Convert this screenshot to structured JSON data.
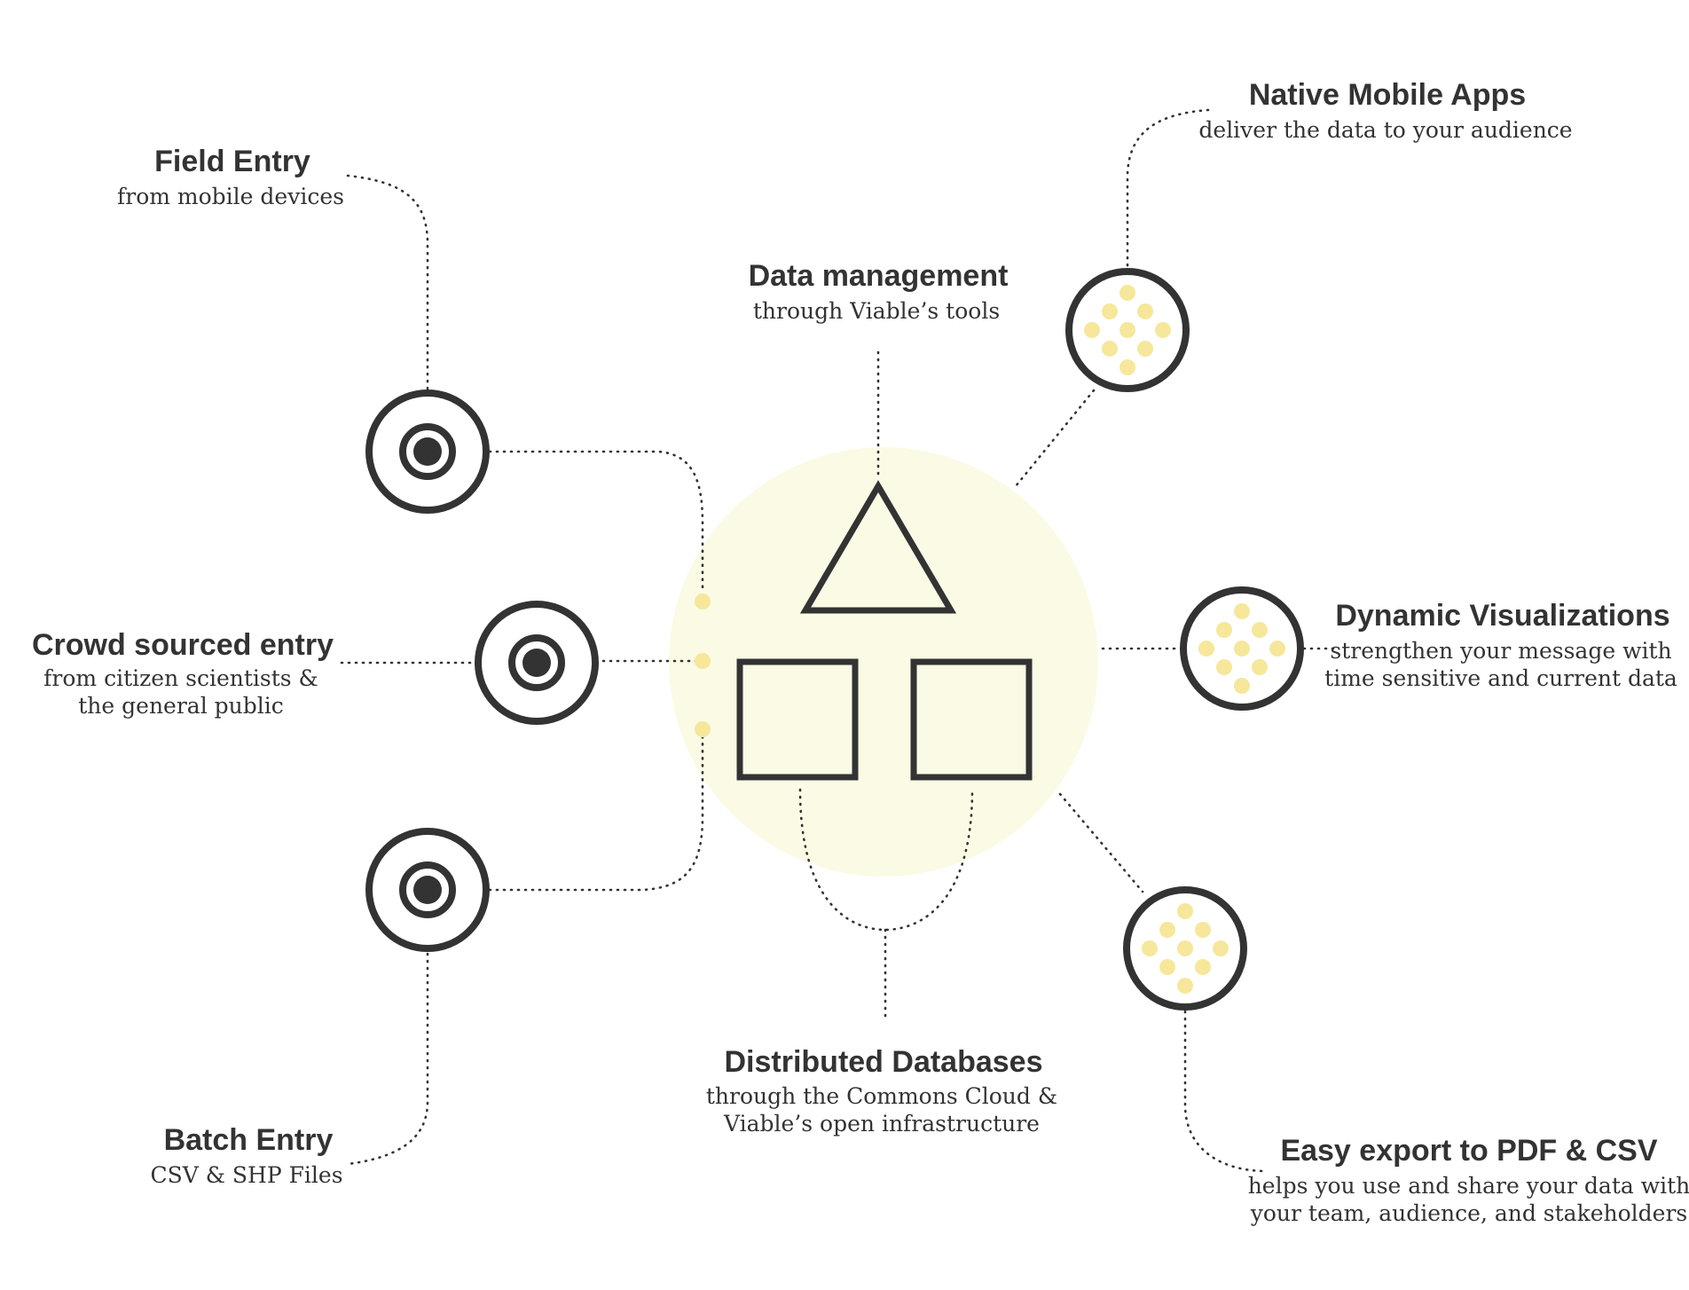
{
  "nodes": {
    "field_entry": {
      "title": "Field Entry",
      "subtitle": [
        "from mobile devices"
      ]
    },
    "crowd_sourced": {
      "title": "Crowd sourced entry",
      "subtitle": [
        "from citizen scientists &",
        "the general public"
      ]
    },
    "batch_entry": {
      "title": "Batch Entry",
      "subtitle": [
        "CSV & SHP Files"
      ]
    },
    "data_management": {
      "title": "Data management",
      "subtitle": [
        "through Viable’s tools"
      ]
    },
    "distributed_db": {
      "title": "Distributed Databases",
      "subtitle": [
        "through the Commons Cloud &",
        "Viable’s open infrastructure"
      ]
    },
    "native_apps": {
      "title": "Native Mobile Apps",
      "subtitle": [
        "deliver the data to your audience"
      ]
    },
    "dynamic_viz": {
      "title": "Dynamic Visualizations",
      "subtitle": [
        "strengthen your message with",
        "time sensitive and current data"
      ]
    },
    "easy_export": {
      "title": "Easy export to PDF & CSV",
      "subtitle": [
        "helps you use and share your data with",
        "your team, audience, and stakeholders"
      ]
    }
  },
  "colors": {
    "ink": "#333333",
    "accent": "#f6e79b",
    "hub": "#fbfae5"
  },
  "icons": {
    "input": "target-icon",
    "output": "dot-grid-icon",
    "hub": "triangle-and-squares-icon"
  }
}
